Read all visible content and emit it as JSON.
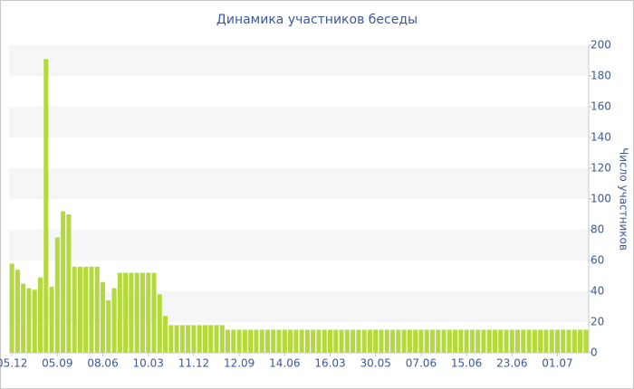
{
  "chart_data": {
    "type": "bar",
    "title": "Динамика участников беседы",
    "y_label": "Число участников",
    "categories": [
      "05.12",
      null,
      null,
      null,
      null,
      null,
      null,
      null,
      "05.09",
      null,
      null,
      null,
      null,
      null,
      null,
      null,
      "08.06",
      null,
      null,
      null,
      null,
      null,
      null,
      null,
      "10.03",
      null,
      null,
      null,
      null,
      null,
      null,
      null,
      "11.12",
      null,
      null,
      null,
      null,
      null,
      null,
      null,
      "12.09",
      null,
      null,
      null,
      null,
      null,
      null,
      null,
      "14.06",
      null,
      null,
      null,
      null,
      null,
      null,
      null,
      "16.03",
      null,
      null,
      null,
      null,
      null,
      null,
      null,
      "30.05",
      null,
      null,
      null,
      null,
      null,
      null,
      null,
      "07.06",
      null,
      null,
      null,
      null,
      null,
      null,
      null,
      "15.06",
      null,
      null,
      null,
      null,
      null,
      null,
      null,
      "23.06",
      null,
      null,
      null,
      null,
      null,
      null,
      null,
      "01.07",
      null,
      null,
      null,
      null,
      null
    ],
    "values": [
      58,
      54,
      45,
      42,
      41,
      49,
      191,
      43,
      75,
      92,
      90,
      56,
      56,
      56,
      56,
      56,
      46,
      34,
      42,
      52,
      52,
      52,
      52,
      52,
      52,
      52,
      38,
      24,
      18,
      18,
      18,
      18,
      18,
      18,
      18,
      18,
      18,
      18,
      15,
      15,
      15,
      15,
      15,
      15,
      15,
      15,
      15,
      15,
      15,
      15,
      15,
      15,
      15,
      15,
      15,
      15,
      15,
      15,
      15,
      15,
      15,
      15,
      15,
      15,
      15,
      15,
      15,
      15,
      15,
      15,
      15,
      15,
      15,
      15,
      15,
      15,
      15,
      15,
      15,
      15,
      15,
      15,
      15,
      15,
      15,
      15,
      15,
      15,
      15,
      15,
      15,
      15,
      15,
      15,
      15,
      15,
      15,
      15,
      15,
      15,
      15,
      15
    ],
    "color": "#b3d93a",
    "ylim": [
      0,
      200
    ],
    "yticks": [
      0,
      20,
      40,
      60,
      80,
      100,
      120,
      140,
      160,
      180,
      200
    ],
    "grid": "bands",
    "y_axis_side": "right"
  }
}
